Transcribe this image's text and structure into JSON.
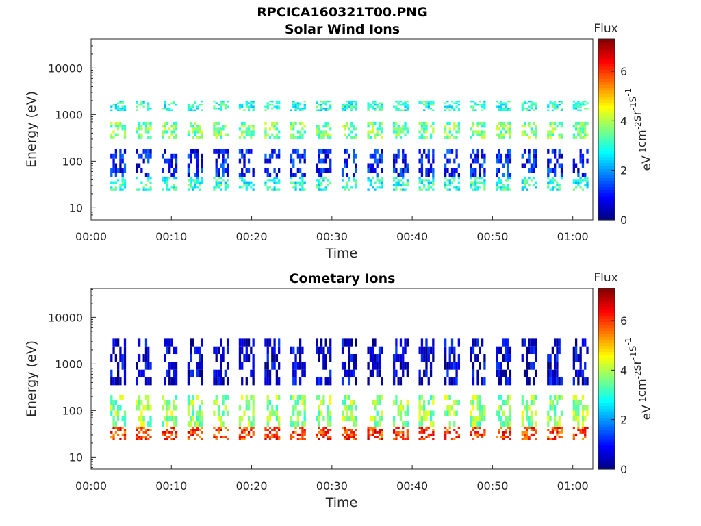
{
  "figure": {
    "title": "RPCICA160321T00.PNG"
  },
  "chart_data": [
    {
      "type": "heatmap",
      "title": "Solar Wind Ions",
      "xlabel": "Time",
      "ylabel": "Energy (eV)",
      "x_ticks": [
        "00:00",
        "00:10",
        "00:20",
        "00:30",
        "00:40",
        "00:50",
        "01:00"
      ],
      "y_ticks": [
        "10",
        "100",
        "1000",
        "10000"
      ],
      "y_scale": "log",
      "xlim_minutes": [
        0,
        62.5
      ],
      "ylim_ev": [
        5.5,
        42000
      ],
      "colorbar": {
        "title": "Flux",
        "label": "eV-1cm-2sr-1s-1",
        "ticks": [
          "0",
          "2",
          "4",
          "6"
        ],
        "range": [
          0,
          7.3
        ],
        "colormap": "jet"
      },
      "scan_period_min": 3.2,
      "first_scan_min": 3.5,
      "bands": [
        {
          "e_lo": 23,
          "e_hi": 45,
          "value": 3.0
        },
        {
          "e_lo": 45,
          "e_hi": 180,
          "value": 1.0
        },
        {
          "e_lo": 300,
          "e_hi": 700,
          "value": 3.6
        },
        {
          "e_lo": 1200,
          "e_hi": 2000,
          "value": 3.0
        }
      ]
    },
    {
      "type": "heatmap",
      "title": "Cometary Ions",
      "xlabel": "Time",
      "ylabel": "Energy (eV)",
      "x_ticks": [
        "00:00",
        "00:10",
        "00:20",
        "00:30",
        "00:40",
        "00:50",
        "01:00"
      ],
      "y_ticks": [
        "10",
        "100",
        "1000",
        "10000"
      ],
      "y_scale": "log",
      "xlim_minutes": [
        0,
        62.5
      ],
      "ylim_ev": [
        5.5,
        42000
      ],
      "colorbar": {
        "title": "Flux",
        "label": "eV-1cm-2sr-1s-1",
        "ticks": [
          "0",
          "2",
          "4",
          "6"
        ],
        "range": [
          0,
          7.3
        ],
        "colormap": "jet"
      },
      "scan_period_min": 3.2,
      "first_scan_min": 3.5,
      "bands": [
        {
          "e_lo": 23,
          "e_hi": 45,
          "value": 6.0
        },
        {
          "e_lo": 45,
          "e_hi": 220,
          "value": 3.8
        },
        {
          "e_lo": 350,
          "e_hi": 3500,
          "value": 0.6
        }
      ]
    }
  ]
}
